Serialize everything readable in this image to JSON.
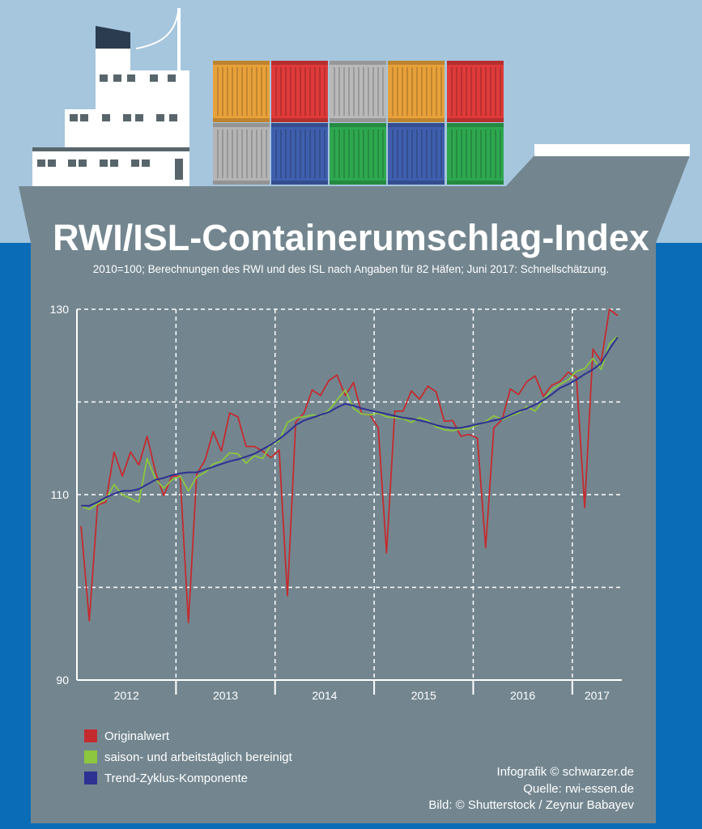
{
  "colors": {
    "sky": "#a6c6de",
    "sea": "#0a6cb6",
    "hull": "#73868f",
    "original": "#c42b2f",
    "adjusted": "#8dc63f",
    "trend": "#2e3192",
    "grid": "#ffffff"
  },
  "header": {
    "title": "RWI/ISL-Containerumschlag-Index",
    "subtitle": "2010=100; Berechnungen des RWI und des ISL nach Angaben für 82 Häfen; Juni 2017: Schnellschätzung."
  },
  "legend": {
    "items": [
      {
        "label": "Originalwert",
        "color": "#c42b2f"
      },
      {
        "label": "saison- und arbeitstäglich bereinigt",
        "color": "#8dc63f"
      },
      {
        "label": "Trend-Zyklus-Komponente",
        "color": "#2e3192"
      }
    ]
  },
  "credits": {
    "line1": "Infografik © schwarzer.de",
    "line2": "Quelle: rwi-essen.de",
    "line3": "Bild: © Shutterstock / Zeynur Babayev"
  },
  "chart_data": {
    "type": "line",
    "title": "RWI/ISL-Containerumschlag-Index",
    "subtitle": "2010=100; Berechnungen des RWI und des ISL nach Angaben für 82 Häfen; Juni 2017: Schnellschätzung.",
    "xlabel": "",
    "ylabel": "",
    "ylim": [
      90,
      130
    ],
    "yticks": [
      90,
      110,
      130
    ],
    "ygrid": [
      100,
      110,
      120,
      130
    ],
    "year_labels": [
      "2012",
      "2013",
      "2014",
      "2015",
      "2016",
      "2017"
    ],
    "x_start": "2012-01",
    "x_end": "2017-06",
    "grid": true,
    "legend_position": "bottom-left",
    "series": [
      {
        "name": "Originalwert",
        "color": "#c42b2f",
        "values": [
          106.6,
          96.4,
          108.9,
          109.2,
          114.6,
          112.0,
          114.6,
          113.2,
          116.3,
          112.5,
          109.9,
          112.0,
          112.0,
          96.2,
          112.2,
          113.7,
          116.8,
          114.7,
          118.8,
          118.4,
          115.2,
          115.2,
          114.7,
          114.0,
          114.8,
          99.1,
          117.8,
          118.8,
          121.3,
          120.7,
          122.3,
          122.9,
          120.7,
          122.1,
          118.7,
          118.6,
          117.2,
          103.7,
          119.0,
          119.0,
          121.2,
          120.3,
          121.7,
          121.1,
          117.9,
          118.0,
          116.3,
          116.5,
          116.1,
          104.3,
          117.2,
          118.1,
          121.4,
          120.8,
          122.2,
          122.8,
          120.6,
          121.8,
          122.2,
          123.2,
          122.7,
          108.6,
          125.7,
          124.4,
          130.0,
          129.3
        ]
      },
      {
        "name": "saison- und arbeitstäglich bereinigt",
        "color": "#8dc63f",
        "values": [
          108.8,
          108.4,
          109.0,
          109.5,
          111.1,
          110.0,
          109.6,
          109.2,
          113.9,
          111.7,
          110.7,
          111.6,
          112.0,
          110.4,
          111.9,
          112.4,
          113.3,
          113.6,
          114.5,
          114.4,
          113.4,
          114.2,
          113.9,
          115.4,
          115.8,
          117.8,
          118.3,
          118.4,
          118.6,
          118.5,
          119.1,
          120.2,
          121.3,
          119.3,
          118.7,
          118.6,
          118.8,
          118.4,
          118.3,
          118.2,
          117.8,
          118.3,
          118.0,
          117.3,
          117.0,
          116.9,
          117.1,
          117.1,
          117.5,
          117.9,
          118.5,
          118.1,
          118.5,
          118.8,
          119.5,
          119.0,
          120.2,
          121.3,
          121.9,
          122.4,
          123.3,
          123.6,
          124.7,
          123.5,
          126.3,
          127.1
        ]
      },
      {
        "name": "Trend-Zyklus-Komponente",
        "color": "#2e3192",
        "values": [
          108.8,
          108.8,
          109.2,
          109.7,
          110.1,
          110.4,
          110.4,
          110.6,
          111.1,
          111.6,
          111.8,
          112.1,
          112.3,
          112.4,
          112.4,
          112.7,
          113.0,
          113.3,
          113.6,
          113.8,
          114.1,
          114.4,
          114.9,
          115.4,
          116.0,
          116.7,
          117.5,
          118.0,
          118.3,
          118.6,
          118.9,
          119.4,
          119.8,
          119.6,
          119.3,
          119.1,
          118.9,
          118.7,
          118.5,
          118.3,
          118.2,
          118.0,
          117.8,
          117.5,
          117.3,
          117.2,
          117.2,
          117.4,
          117.6,
          117.8,
          118.0,
          118.2,
          118.6,
          119.0,
          119.3,
          119.7,
          120.2,
          120.8,
          121.5,
          121.9,
          122.4,
          123.0,
          123.5,
          124.2,
          125.7,
          127.0
        ]
      }
    ]
  }
}
